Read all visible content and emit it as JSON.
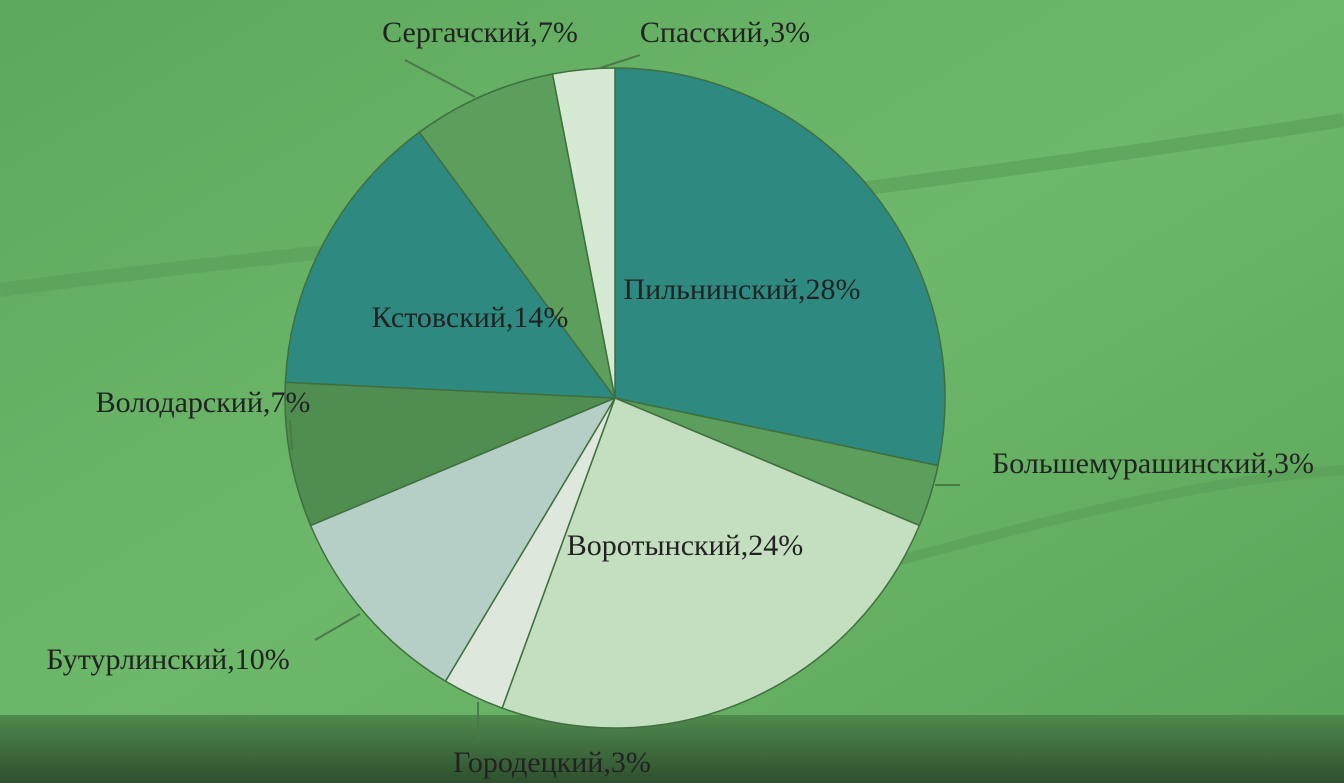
{
  "chart_data": {
    "type": "pie",
    "values": [
      28,
      3,
      24,
      3,
      10,
      7,
      14,
      7,
      3
    ],
    "value_labels": [
      "Пильнинский,28%",
      "Большемурашинский,3%",
      "Воротынский,24%",
      "Городецкий,3%",
      "Бутурлинский,10%",
      "Володарский,7%",
      "Кстовский,14%",
      "Сергачский,7%",
      "Спасский,3%"
    ],
    "colors": [
      "#2e8a80",
      "#5c9e5c",
      "#c3dfbf",
      "#dde7dc",
      "#b6cfc6",
      "#4f8d50",
      "#2e8a80",
      "#5c9e5c",
      "#d6e9d3"
    ]
  }
}
